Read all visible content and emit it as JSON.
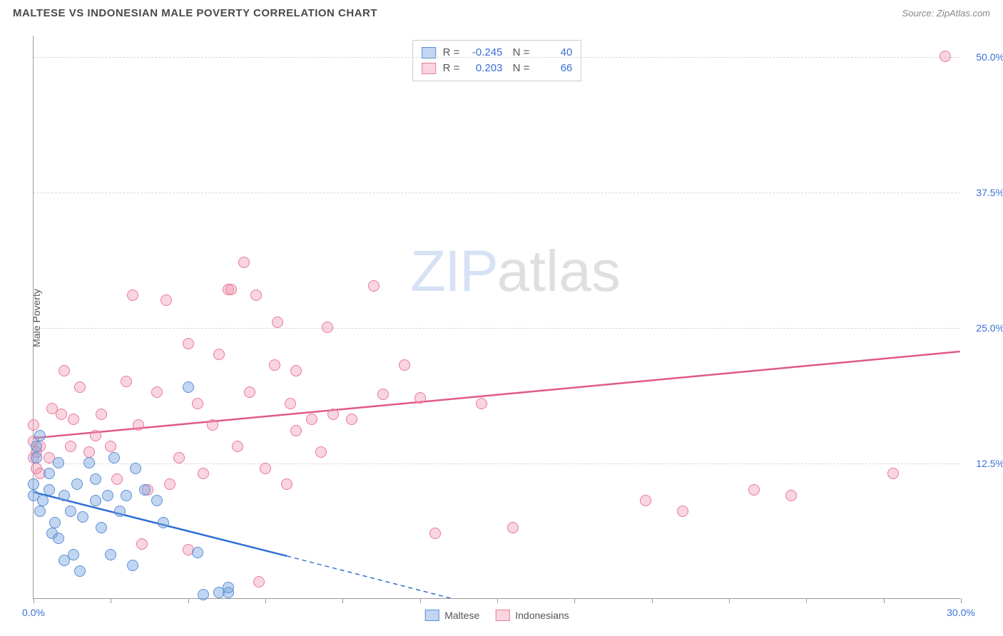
{
  "header": {
    "title": "MALTESE VS INDONESIAN MALE POVERTY CORRELATION CHART",
    "source": "Source: ZipAtlas.com"
  },
  "chart": {
    "type": "scatter",
    "ylabel": "Male Poverty",
    "xlim": [
      0,
      30
    ],
    "ylim": [
      0,
      52
    ],
    "xtick_positions": [
      0,
      2.5,
      5,
      7.5,
      10,
      12.5,
      15,
      17.5,
      20,
      22.5,
      25,
      27.5,
      30
    ],
    "xtick_labels": {
      "0": "0.0%",
      "30": "30.0%"
    },
    "ytick_positions": [
      12.5,
      25.0,
      37.5,
      50.0
    ],
    "ytick_labels": [
      "12.5%",
      "25.0%",
      "37.5%",
      "50.0%"
    ],
    "grid_color": "#d8d8d8",
    "axis_color": "#9a9a9a",
    "tick_label_color": "#3b6fd6",
    "marker_radius": 8,
    "background_color": "#ffffff",
    "watermark": {
      "part1": "ZIP",
      "part2": "atlas"
    }
  },
  "series": {
    "maltese": {
      "label": "Maltese",
      "fill_color": "rgba(120,165,225,0.45)",
      "stroke_color": "#5b8fd6",
      "trend": {
        "x1": 0,
        "y1": 9.8,
        "x2": 13.5,
        "y2": 0,
        "color": "#2f6fd0",
        "width": 2.5
      },
      "trend_ext": {
        "x1": 8.2,
        "y1": 3.9,
        "x2": 13.5,
        "y2": 0,
        "dash": true
      },
      "R": "-0.245",
      "N": "40",
      "points": [
        [
          0.0,
          9.5
        ],
        [
          0.0,
          10.5
        ],
        [
          0.1,
          14.0
        ],
        [
          0.1,
          13.0
        ],
        [
          0.2,
          8.0
        ],
        [
          0.2,
          15.0
        ],
        [
          0.3,
          9.0
        ],
        [
          0.5,
          10.0
        ],
        [
          0.5,
          11.5
        ],
        [
          0.6,
          6.0
        ],
        [
          0.7,
          7.0
        ],
        [
          0.8,
          12.5
        ],
        [
          0.8,
          5.5
        ],
        [
          1.0,
          3.5
        ],
        [
          1.0,
          9.5
        ],
        [
          1.2,
          8.0
        ],
        [
          1.3,
          4.0
        ],
        [
          1.4,
          10.5
        ],
        [
          1.5,
          2.5
        ],
        [
          1.6,
          7.5
        ],
        [
          1.8,
          12.5
        ],
        [
          2.0,
          9.0
        ],
        [
          2.0,
          11.0
        ],
        [
          2.2,
          6.5
        ],
        [
          2.4,
          9.5
        ],
        [
          2.5,
          4.0
        ],
        [
          2.6,
          13.0
        ],
        [
          2.8,
          8.0
        ],
        [
          3.0,
          9.5
        ],
        [
          3.2,
          3.0
        ],
        [
          3.3,
          12.0
        ],
        [
          3.6,
          10.0
        ],
        [
          4.0,
          9.0
        ],
        [
          4.2,
          7.0
        ],
        [
          5.0,
          19.5
        ],
        [
          5.3,
          4.2
        ],
        [
          5.5,
          0.3
        ],
        [
          6.0,
          0.5
        ],
        [
          6.3,
          0.5
        ],
        [
          6.3,
          1.0
        ]
      ]
    },
    "indonesians": {
      "label": "Indonesians",
      "fill_color": "rgba(240,150,175,0.40)",
      "stroke_color": "#e77a9a",
      "trend": {
        "x1": 0,
        "y1": 14.8,
        "x2": 30,
        "y2": 22.8,
        "color": "#e05a85",
        "width": 2.5
      },
      "R": "0.203",
      "N": "66",
      "points": [
        [
          0.0,
          13.0
        ],
        [
          0.0,
          14.5
        ],
        [
          0.0,
          16.0
        ],
        [
          0.1,
          12.0
        ],
        [
          0.1,
          13.5
        ],
        [
          0.2,
          14.0
        ],
        [
          0.2,
          11.5
        ],
        [
          0.5,
          13.0
        ],
        [
          0.6,
          17.5
        ],
        [
          0.9,
          17.0
        ],
        [
          1.0,
          21.0
        ],
        [
          1.2,
          14.0
        ],
        [
          1.3,
          16.5
        ],
        [
          1.5,
          19.5
        ],
        [
          1.8,
          13.5
        ],
        [
          2.0,
          15.0
        ],
        [
          2.2,
          17.0
        ],
        [
          2.5,
          14.0
        ],
        [
          2.7,
          11.0
        ],
        [
          3.0,
          20.0
        ],
        [
          3.2,
          28.0
        ],
        [
          3.4,
          16.0
        ],
        [
          3.7,
          10.0
        ],
        [
          4.0,
          19.0
        ],
        [
          4.3,
          27.5
        ],
        [
          4.4,
          10.5
        ],
        [
          4.7,
          13.0
        ],
        [
          5.0,
          23.5
        ],
        [
          5.3,
          18.0
        ],
        [
          5.5,
          11.5
        ],
        [
          5.8,
          16.0
        ],
        [
          6.0,
          22.5
        ],
        [
          6.3,
          28.5
        ],
        [
          6.4,
          28.5
        ],
        [
          6.6,
          14.0
        ],
        [
          6.8,
          31.0
        ],
        [
          7.0,
          19.0
        ],
        [
          7.2,
          28.0
        ],
        [
          7.3,
          1.5
        ],
        [
          7.5,
          12.0
        ],
        [
          7.8,
          21.5
        ],
        [
          7.9,
          25.5
        ],
        [
          8.2,
          10.5
        ],
        [
          8.3,
          18.0
        ],
        [
          8.5,
          15.5
        ],
        [
          8.5,
          21.0
        ],
        [
          9.0,
          16.5
        ],
        [
          9.3,
          13.5
        ],
        [
          9.5,
          25.0
        ],
        [
          9.7,
          17.0
        ],
        [
          10.3,
          16.5
        ],
        [
          11.0,
          28.8
        ],
        [
          11.3,
          18.8
        ],
        [
          12.0,
          21.5
        ],
        [
          12.5,
          18.5
        ],
        [
          13.0,
          6.0
        ],
        [
          14.5,
          18.0
        ],
        [
          15.5,
          6.5
        ],
        [
          19.8,
          9.0
        ],
        [
          21.0,
          8.0
        ],
        [
          23.3,
          10.0
        ],
        [
          24.5,
          9.5
        ],
        [
          27.8,
          11.5
        ],
        [
          29.5,
          50.0
        ],
        [
          5.0,
          4.5
        ],
        [
          3.5,
          5.0
        ]
      ]
    }
  },
  "legend": {
    "items": [
      {
        "key": "maltese"
      },
      {
        "key": "indonesians"
      }
    ]
  }
}
